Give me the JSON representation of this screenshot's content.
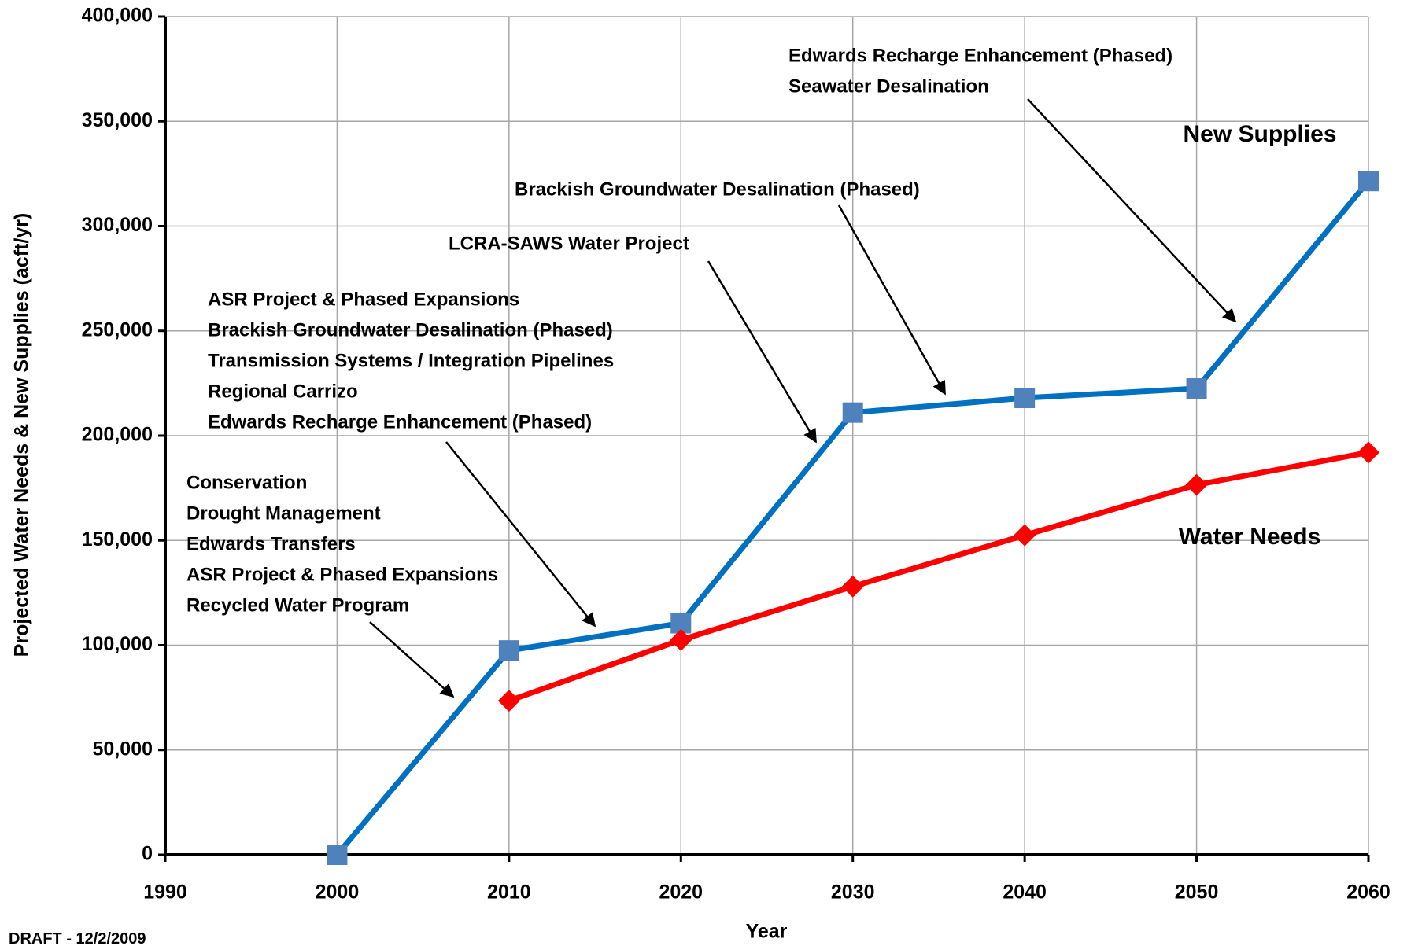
{
  "chart_data": {
    "type": "line",
    "x_label": "Year",
    "y_label": "Projected Water Needs & New Supplies (acft/yr)",
    "x": [
      2000,
      2010,
      2020,
      2030,
      2040,
      2050,
      2060
    ],
    "series": [
      {
        "name": "New Supplies",
        "color": "#0070c0",
        "marker_color": "#4f81bd",
        "marker": "square",
        "values": [
          0,
          97500,
          110500,
          211000,
          218000,
          222500,
          321500
        ]
      },
      {
        "name": "Water Needs",
        "color": "#ff0000",
        "marker_color": "#ff0000",
        "marker": "diamond",
        "values": [
          null,
          73500,
          102500,
          128000,
          152500,
          176500,
          192000
        ]
      }
    ],
    "xlim": [
      1990,
      2060
    ],
    "xticks": [
      1990,
      2000,
      2010,
      2020,
      2030,
      2040,
      2050,
      2060
    ],
    "ylim": [
      0,
      400000
    ],
    "yticks": [
      0,
      {
        "value": 50000,
        "label": "50,000"
      },
      {
        "value": 100000,
        "label": "100,000"
      },
      {
        "value": 150000,
        "label": "150,000"
      },
      {
        "value": 200000,
        "label": "200,000"
      },
      {
        "value": 250000,
        "label": "250,000"
      },
      {
        "value": 300000,
        "label": "300,000"
      },
      {
        "value": 350000,
        "label": "350,000"
      },
      {
        "value": 400000,
        "label": "400,000"
      }
    ],
    "grid": true,
    "annotations": [
      {
        "lines": [
          "Conservation",
          "Drought Management",
          "Edwards Transfers",
          "ASR Project & Phased Expansions",
          "Recycled Water Program"
        ]
      },
      {
        "lines": [
          "ASR Project & Phased Expansions",
          "Brackish Groundwater Desalination (Phased)",
          "Transmission Systems / Integration Pipelines",
          "Regional Carrizo",
          "Edwards Recharge Enhancement (Phased)"
        ]
      },
      {
        "lines": [
          "LCRA-SAWS Water Project"
        ]
      },
      {
        "lines": [
          "Brackish Groundwater Desalination (Phased)"
        ]
      },
      {
        "lines": [
          "Edwards Recharge Enhancement (Phased)",
          "Seawater Desalination"
        ]
      }
    ],
    "footnote": "DRAFT - 12/2/2009"
  }
}
